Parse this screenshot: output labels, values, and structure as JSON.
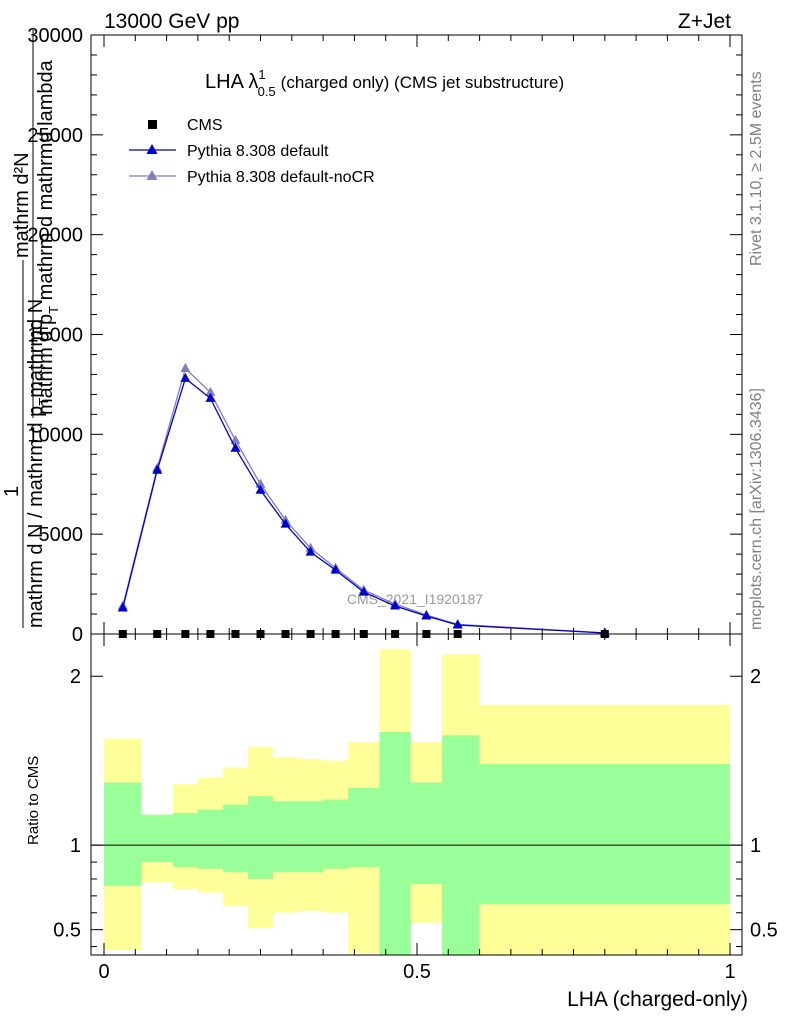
{
  "header": {
    "left": "13000 GeV pp",
    "right": "Z+Jet"
  },
  "side_text": {
    "top": "Rivet 3.1.10, ≥ 2.5M events",
    "bottom": "mcplots.cern.ch [arXiv:1306.3436]"
  },
  "chart_data": [
    {
      "type": "line",
      "title": {
        "main": "LHA λ",
        "sup": "1",
        "sub": "0.5",
        "rest": "(charged only) (CMS jet substructure)"
      },
      "ylabel": {
        "num1": "mathrm d²N",
        "den1": "mathrm d p",
        "den1_sub": "T",
        "den1_rest": " mathrm d mathrmd lambda",
        "lead": "1",
        "den2": "mathrm d N / mathrm d p",
        "den2_sub": "T",
        "den2_rest": "mathrmd N"
      },
      "xlim": [
        0,
        1
      ],
      "ylim": [
        0,
        30000
      ],
      "yticks": [
        "0",
        "5000",
        "10000",
        "15000",
        "20000",
        "25000",
        "30000"
      ],
      "watermark": "CMS_2021_I1920187",
      "legend_position": "top-left",
      "legend": [
        {
          "label": "CMS",
          "color": "#000000",
          "marker": "square"
        },
        {
          "label": "Pythia 8.308 default",
          "color": "#0000cc",
          "marker": "triangle"
        },
        {
          "label": "Pythia 8.308 default-noCR",
          "color": "#8080b8",
          "marker": "triangle"
        }
      ],
      "x": [
        0.03,
        0.085,
        0.13,
        0.17,
        0.21,
        0.25,
        0.29,
        0.33,
        0.37,
        0.415,
        0.465,
        0.515,
        0.565,
        0.8
      ],
      "series": [
        {
          "name": "CMS",
          "values": [
            0,
            0,
            0,
            0,
            0,
            0,
            0,
            0,
            0,
            0,
            0,
            0,
            0,
            0
          ]
        },
        {
          "name": "Pythia 8.308 default",
          "values": [
            1300,
            8200,
            12800,
            11800,
            9300,
            7200,
            5500,
            4100,
            3200,
            2100,
            1400,
            900,
            450,
            50
          ]
        },
        {
          "name": "Pythia 8.308 default-noCR",
          "values": [
            1400,
            8300,
            13300,
            12100,
            9700,
            7500,
            5700,
            4300,
            3300,
            2200,
            1500,
            950,
            480,
            55
          ]
        }
      ]
    },
    {
      "type": "area",
      "ylabel": "Ratio to CMS",
      "xlabel": "LHA (charged-only)",
      "xlim": [
        0,
        1
      ],
      "ylim": [
        0.35,
        2.25
      ],
      "yticks": [
        "0.5",
        "1",
        "2"
      ],
      "xticks": [
        "0",
        "0.5",
        "1"
      ],
      "bins": [
        0,
        0.06,
        0.11,
        0.15,
        0.19,
        0.23,
        0.27,
        0.31,
        0.35,
        0.39,
        0.44,
        0.49,
        0.54,
        0.6,
        1.0
      ],
      "inner_band_color": "#99ff99",
      "outer_band_color": "#ffff99",
      "inner_band": {
        "high": [
          1.37,
          1.18,
          1.19,
          1.21,
          1.24,
          1.29,
          1.26,
          1.26,
          1.27,
          1.34,
          1.67,
          1.37,
          1.65,
          1.48
        ],
        "low": [
          0.76,
          0.9,
          0.87,
          0.86,
          0.84,
          0.8,
          0.84,
          0.84,
          0.86,
          0.87,
          0.35,
          0.77,
          0.35,
          0.65
        ]
      },
      "outer_band": {
        "high": [
          1.63,
          1.18,
          1.36,
          1.4,
          1.46,
          1.58,
          1.52,
          1.51,
          1.5,
          1.61,
          2.16,
          1.61,
          2.13,
          1.83
        ],
        "low": [
          0.38,
          0.78,
          0.74,
          0.72,
          0.64,
          0.51,
          0.6,
          0.61,
          0.6,
          0.36,
          0.35,
          0.54,
          0.35,
          0.35
        ]
      },
      "reference_line": 1
    }
  ]
}
